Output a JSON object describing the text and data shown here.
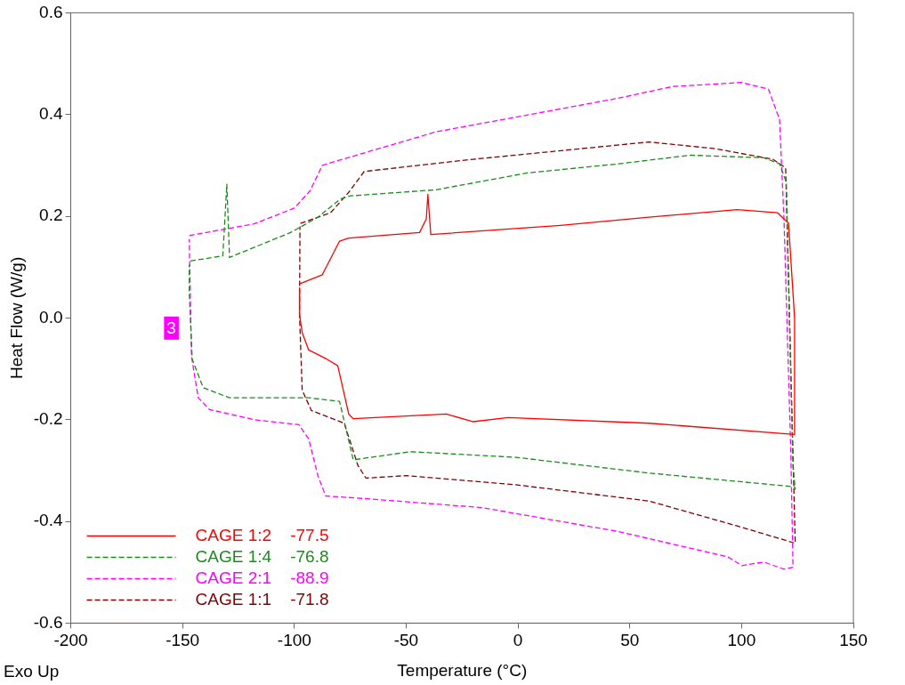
{
  "chart_data": {
    "type": "line",
    "xlabel": "Temperature (°C)",
    "ylabel": "Heat Flow (W/g)",
    "xlim": [
      -200,
      150
    ],
    "xticks": [
      -200,
      -150,
      -100,
      -50,
      0,
      50,
      100,
      150
    ],
    "ylim": [
      -0.6,
      0.6
    ],
    "yticks": [
      {
        "value": -0.6,
        "label": "-0.6"
      },
      {
        "value": -0.4,
        "label": "-0.4"
      },
      {
        "value": -0.2,
        "label": "-0.2"
      },
      {
        "value": 0,
        "label": "0.0"
      },
      {
        "value": 0.2,
        "label": "0.2"
      },
      {
        "value": 0.4,
        "label": "0.4"
      },
      {
        "value": 0.6,
        "label": "0.6"
      }
    ],
    "grid": false,
    "legend": "bottom left",
    "marker": "none",
    "annotations": [
      "Exo Up",
      {
        "text": "3",
        "x": -155,
        "y": -0.02
      }
    ],
    "series": [
      {
        "name": "CAGE 1:2    -77.5",
        "color": "#ff0000",
        "line_style": "solid",
        "x": [
          -97.7,
          -87.5,
          -79.8,
          -75.7,
          -44,
          -41,
          -40.3,
          -39,
          19,
          58.6,
          98,
          116,
          121,
          123.7,
          123.7,
          58.6,
          -4.5,
          -20,
          -32,
          -73.7,
          -75.7,
          -80.6,
          -85.5,
          -93.6,
          -96.5,
          -97.7,
          -97.7
        ],
        "values": [
          0.067,
          0.085,
          0.151,
          0.157,
          0.168,
          0.195,
          0.243,
          0.164,
          0.182,
          0.198,
          0.213,
          0.207,
          0.186,
          0.0,
          -0.229,
          -0.207,
          -0.196,
          -0.204,
          -0.189,
          -0.198,
          -0.189,
          -0.094,
          -0.081,
          -0.063,
          -0.029,
          0.007,
          0.06
        ]
      },
      {
        "name": "CAGE 1:4    -76.8",
        "color": "#1a8c1a",
        "line_style": "dashed",
        "x": [
          -146.5,
          -132,
          -130.2,
          -129,
          -101.7,
          -89.5,
          -79.4,
          -75,
          -36.6,
          4,
          45,
          77,
          110,
          117,
          120,
          123,
          124,
          123.7,
          58.6,
          -1,
          -48,
          -73.7,
          -79.8,
          -93.6,
          -129,
          -140.8,
          -145.7,
          -147,
          -147
        ],
        "values": [
          0.112,
          0.122,
          0.263,
          0.119,
          0.168,
          0.198,
          0.234,
          0.24,
          0.252,
          0.285,
          0.303,
          0.32,
          0.315,
          0.303,
          0.267,
          -0.292,
          -0.337,
          -0.332,
          -0.305,
          -0.274,
          -0.263,
          -0.279,
          -0.164,
          -0.157,
          -0.157,
          -0.137,
          -0.081,
          0.05,
          0.105
        ]
      },
      {
        "name": "CAGE 2:1    -88.9",
        "color": "#ff00ff",
        "line_style": "dashed",
        "x": [
          -147,
          -118,
          -100,
          -93,
          -87.5,
          -80,
          -36.6,
          44.8,
          69,
          100,
          112,
          117,
          119,
          122,
          123,
          119,
          110,
          100,
          94,
          45,
          -16,
          -69,
          -86,
          -89.5,
          -93.6,
          -98,
          -118,
          -138,
          -143,
          -146,
          -146.5,
          -147
        ],
        "values": [
          0.162,
          0.185,
          0.216,
          0.25,
          0.3,
          0.31,
          0.366,
          0.432,
          0.455,
          0.463,
          0.45,
          0.39,
          0.19,
          -0.26,
          -0.49,
          -0.494,
          -0.48,
          -0.487,
          -0.47,
          -0.42,
          -0.373,
          -0.355,
          -0.35,
          -0.31,
          -0.238,
          -0.21,
          -0.2,
          -0.18,
          -0.157,
          -0.076,
          0.03,
          0.155
        ]
      },
      {
        "name": "CAGE 1:1    -71.8",
        "color": "#800000",
        "line_style": "dashed",
        "x": [
          -97.3,
          -83.8,
          -75.7,
          -68.8,
          -20,
          58.6,
          88,
          114,
          119.7,
          124,
          98,
          58.6,
          -1,
          -50,
          -68,
          -71.6,
          -77.7,
          -92.4,
          -96.5,
          -97.7,
          -97.5
        ],
        "values": [
          0.186,
          0.207,
          0.247,
          0.288,
          0.312,
          0.346,
          0.333,
          0.312,
          0.295,
          -0.443,
          -0.409,
          -0.36,
          -0.328,
          -0.31,
          -0.315,
          -0.29,
          -0.207,
          -0.182,
          -0.142,
          0.007,
          0.18
        ]
      }
    ]
  }
}
